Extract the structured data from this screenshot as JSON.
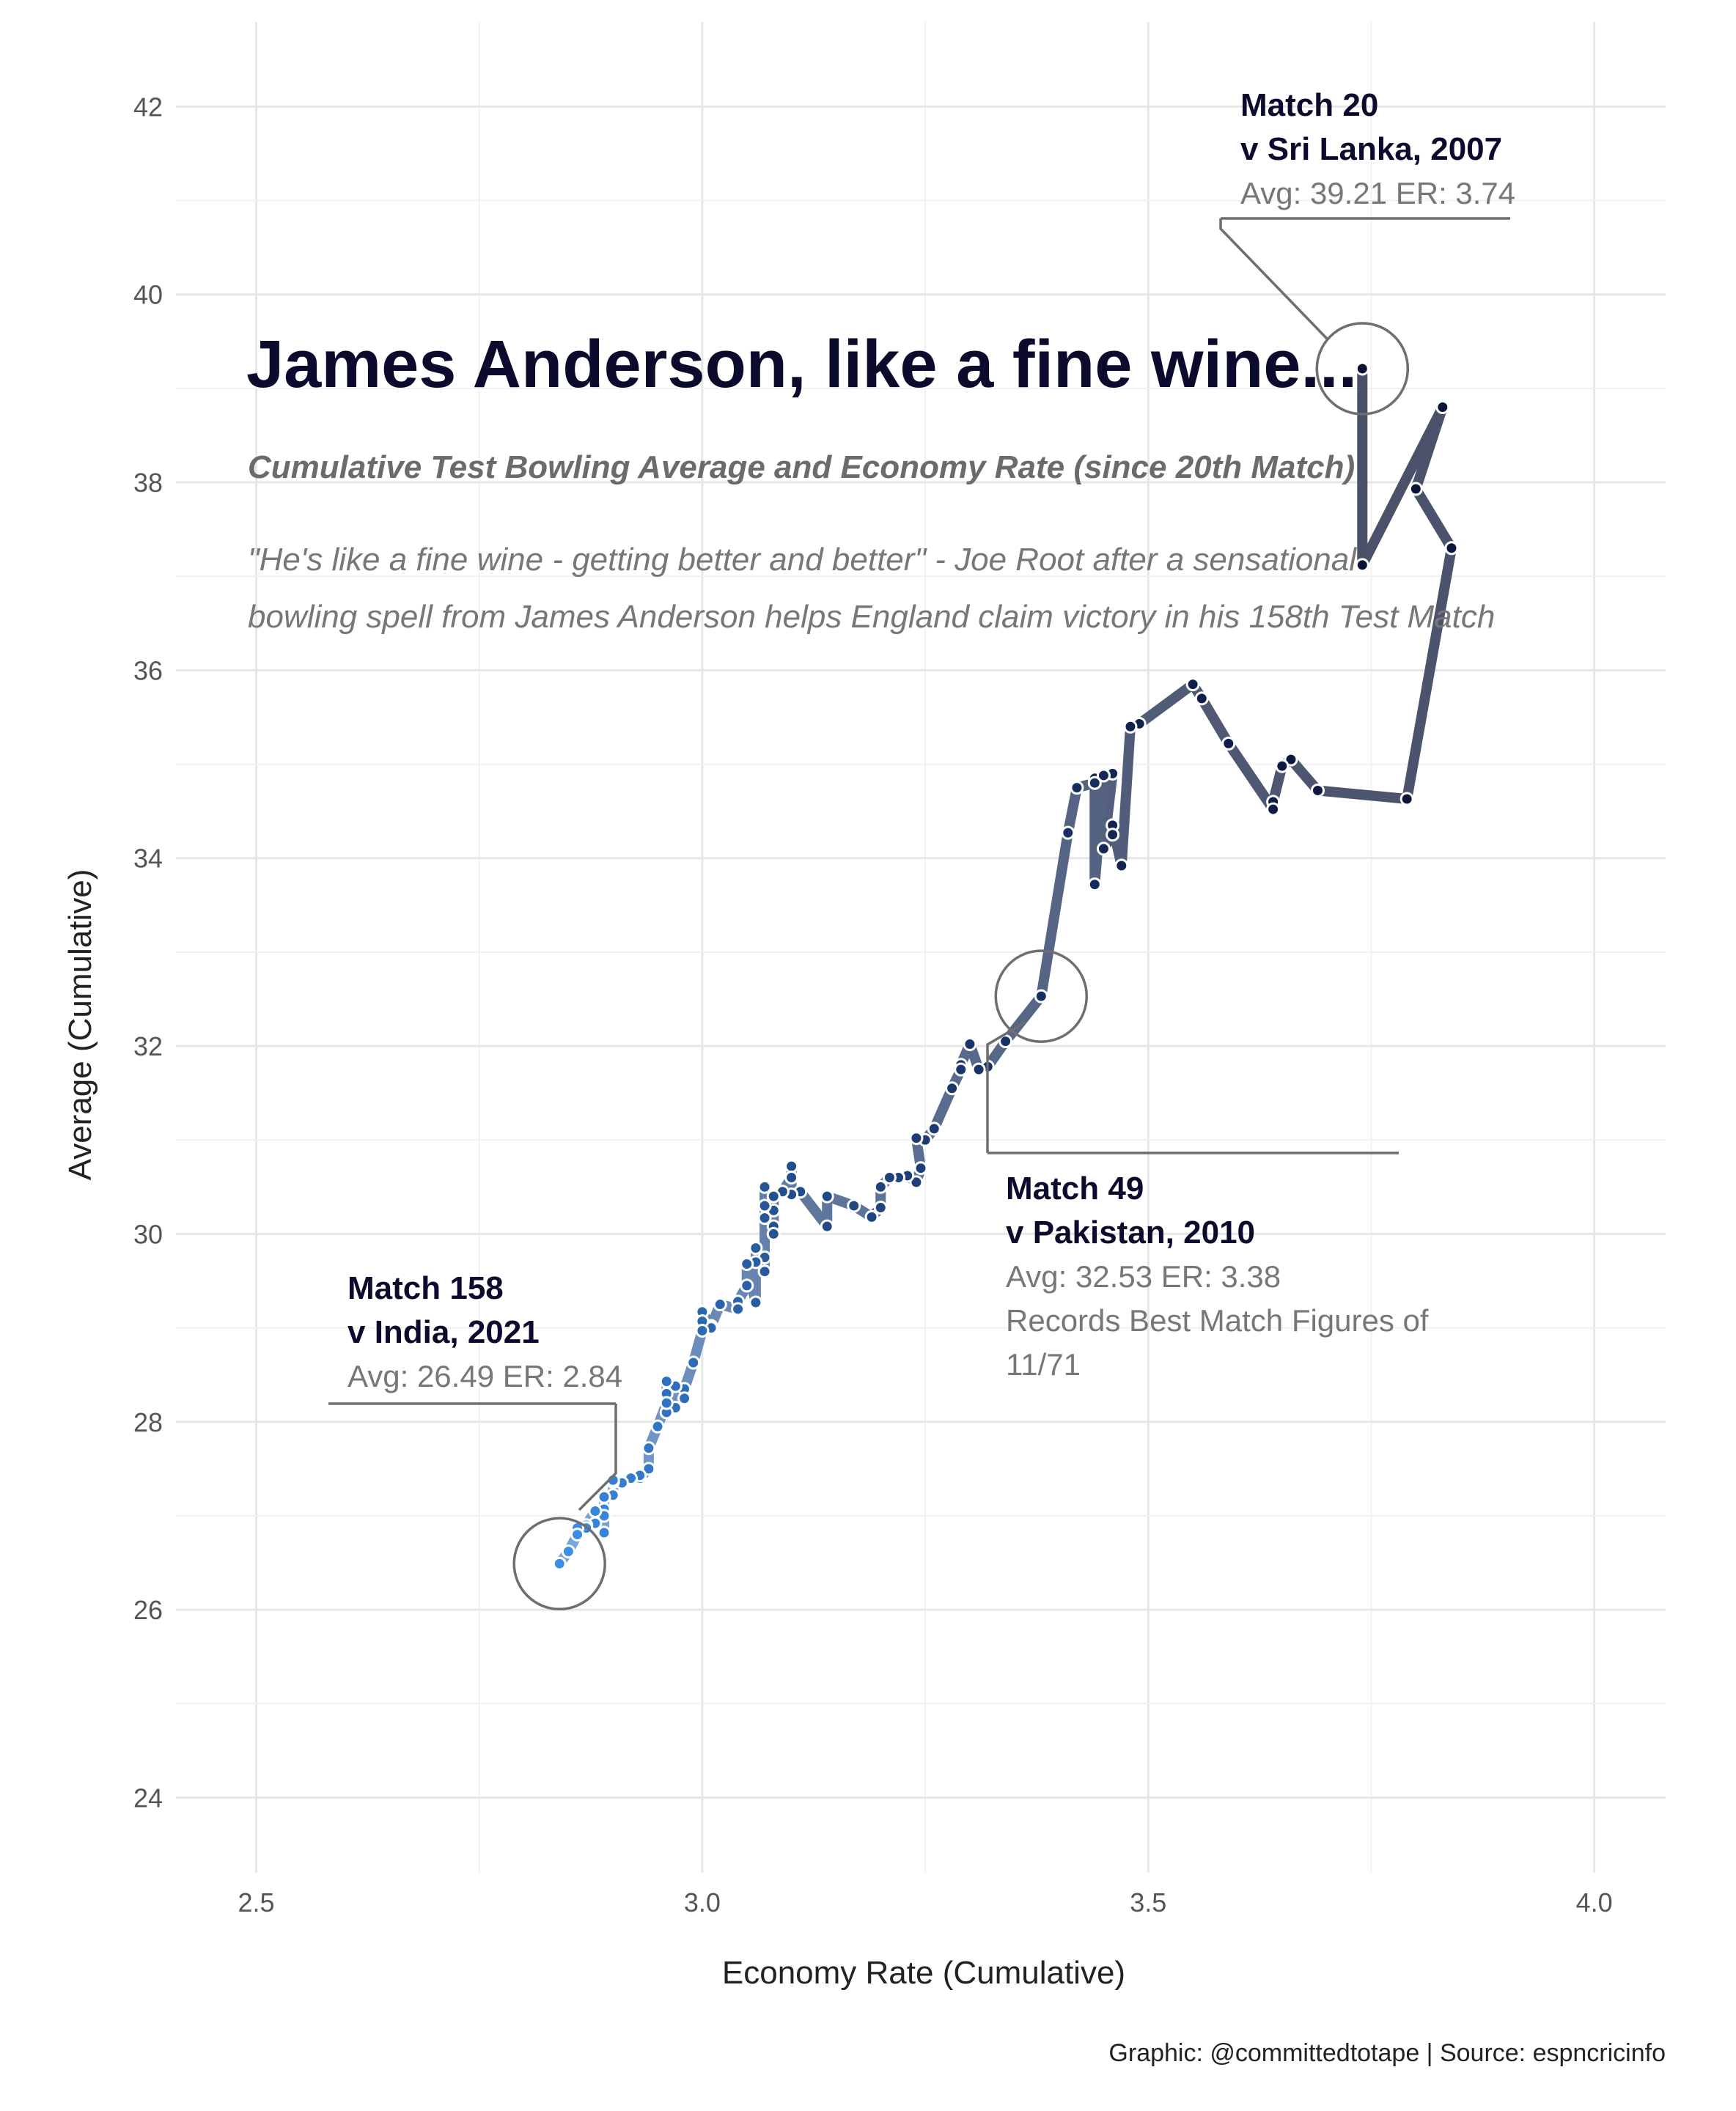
{
  "chart_data": {
    "type": "line",
    "title": "James Anderson, like a fine wine...",
    "subtitle": "Cumulative Test Bowling Average and Economy Rate (since 20th Match)",
    "quote": [
      "\"He's like a fine wine - getting better and better\" - Joe Root after a sensational",
      "bowling spell from James Anderson helps England claim victory in his 158th Test Match"
    ],
    "xlabel": "Economy Rate (Cumulative)",
    "ylabel": "Average (Cumulative)",
    "xlim": [
      2.41,
      4.08
    ],
    "ylim": [
      23.2,
      42.9
    ],
    "xticks": [
      2.5,
      3.0,
      3.5,
      4.0
    ],
    "xtick_labels": [
      "2.5",
      "3.0",
      "3.5",
      "4.0"
    ],
    "yticks": [
      24,
      26,
      28,
      30,
      32,
      34,
      36,
      38,
      40,
      42
    ],
    "ytick_labels": [
      "24",
      "26",
      "28",
      "30",
      "32",
      "34",
      "36",
      "38",
      "40",
      "42"
    ],
    "grid": true,
    "colors": {
      "early": "#0b1035",
      "late": "#3b8ee8",
      "line_early": "#4a5068",
      "line_late": "#7aa6de"
    },
    "series": [
      {
        "match_from": 20,
        "match_to": 158,
        "points": [
          [
            3.74,
            39.21
          ],
          [
            3.74,
            37.12
          ],
          [
            3.83,
            38.8
          ],
          [
            3.8,
            37.93
          ],
          [
            3.84,
            37.3
          ],
          [
            3.79,
            34.63
          ],
          [
            3.69,
            34.72
          ],
          [
            3.66,
            35.05
          ],
          [
            3.65,
            34.98
          ],
          [
            3.64,
            34.6
          ],
          [
            3.64,
            34.52
          ],
          [
            3.59,
            35.22
          ],
          [
            3.56,
            35.7
          ],
          [
            3.55,
            35.85
          ],
          [
            3.49,
            35.43
          ],
          [
            3.48,
            35.4
          ],
          [
            3.47,
            33.92
          ],
          [
            3.46,
            34.35
          ],
          [
            3.46,
            34.25
          ],
          [
            3.45,
            34.1
          ],
          [
            3.46,
            34.9
          ],
          [
            3.44,
            34.85
          ],
          [
            3.45,
            34.88
          ],
          [
            3.44,
            33.72
          ],
          [
            3.44,
            34.8
          ],
          [
            3.42,
            34.75
          ],
          [
            3.41,
            34.27
          ],
          [
            3.38,
            32.53
          ],
          [
            3.34,
            32.05
          ],
          [
            3.32,
            31.78
          ],
          [
            3.31,
            31.75
          ],
          [
            3.3,
            32.02
          ],
          [
            3.29,
            31.8
          ],
          [
            3.29,
            31.75
          ],
          [
            3.28,
            31.55
          ],
          [
            3.26,
            31.12
          ],
          [
            3.25,
            31.0
          ],
          [
            3.24,
            31.02
          ],
          [
            3.245,
            30.7
          ],
          [
            3.24,
            30.55
          ],
          [
            3.23,
            30.62
          ],
          [
            3.22,
            30.6
          ],
          [
            3.21,
            30.6
          ],
          [
            3.2,
            30.5
          ],
          [
            3.2,
            30.28
          ],
          [
            3.19,
            30.18
          ],
          [
            3.17,
            30.3
          ],
          [
            3.14,
            30.4
          ],
          [
            3.14,
            30.08
          ],
          [
            3.11,
            30.45
          ],
          [
            3.1,
            30.42
          ],
          [
            3.1,
            30.72
          ],
          [
            3.1,
            30.6
          ],
          [
            3.09,
            30.45
          ],
          [
            3.08,
            30.4
          ],
          [
            3.08,
            30.25
          ],
          [
            3.08,
            30.08
          ],
          [
            3.08,
            30.0
          ],
          [
            3.07,
            30.5
          ],
          [
            3.07,
            30.3
          ],
          [
            3.07,
            30.17
          ],
          [
            3.07,
            29.75
          ],
          [
            3.07,
            29.6
          ],
          [
            3.06,
            29.85
          ],
          [
            3.06,
            29.7
          ],
          [
            3.06,
            29.27
          ],
          [
            3.05,
            29.68
          ],
          [
            3.05,
            29.45
          ],
          [
            3.04,
            29.28
          ],
          [
            3.04,
            29.2
          ],
          [
            3.02,
            29.25
          ],
          [
            3.01,
            29.02
          ],
          [
            3.01,
            29.0
          ],
          [
            3.0,
            29.17
          ],
          [
            3.0,
            29.07
          ],
          [
            3.0,
            28.97
          ],
          [
            2.99,
            28.63
          ],
          [
            2.98,
            28.35
          ],
          [
            2.98,
            28.25
          ],
          [
            2.97,
            28.38
          ],
          [
            2.97,
            28.15
          ],
          [
            2.96,
            28.43
          ],
          [
            2.96,
            28.3
          ],
          [
            2.96,
            28.1
          ],
          [
            2.96,
            28.2
          ],
          [
            2.95,
            27.95
          ],
          [
            2.94,
            27.72
          ],
          [
            2.94,
            27.5
          ],
          [
            2.93,
            27.4
          ],
          [
            2.93,
            27.43
          ],
          [
            2.92,
            27.4
          ],
          [
            2.91,
            27.35
          ],
          [
            2.9,
            27.36
          ],
          [
            2.9,
            27.38
          ],
          [
            2.9,
            27.22
          ],
          [
            2.89,
            27.2
          ],
          [
            2.89,
            27.07
          ],
          [
            2.89,
            26.82
          ],
          [
            2.89,
            27.0
          ],
          [
            2.88,
            26.92
          ],
          [
            2.88,
            27.05
          ],
          [
            2.87,
            26.9
          ],
          [
            2.87,
            26.87
          ],
          [
            2.86,
            26.87
          ],
          [
            2.86,
            26.8
          ],
          [
            2.85,
            26.62
          ],
          [
            2.84,
            26.49
          ]
        ]
      }
    ],
    "annotations": [
      {
        "id": "match-20",
        "x": 3.74,
        "y": 39.21,
        "lines_bold": [
          "Match 20",
          "v Sri Lanka, 2007"
        ],
        "lines": [
          "Avg: 39.21 ER: 3.74"
        ]
      },
      {
        "id": "match-49",
        "x": 3.38,
        "y": 32.53,
        "lines_bold": [
          "Match 49",
          "v Pakistan, 2010"
        ],
        "lines": [
          "Avg: 32.53 ER: 3.38",
          "Records Best Match Figures of",
          "11/71"
        ]
      },
      {
        "id": "match-158",
        "x": 2.84,
        "y": 26.49,
        "lines_bold": [
          "Match 158",
          "v India, 2021"
        ],
        "lines": [
          "Avg: 26.49 ER: 2.84"
        ]
      }
    ],
    "caption": "Graphic: @committedtotape | Source: espncricinfo"
  }
}
